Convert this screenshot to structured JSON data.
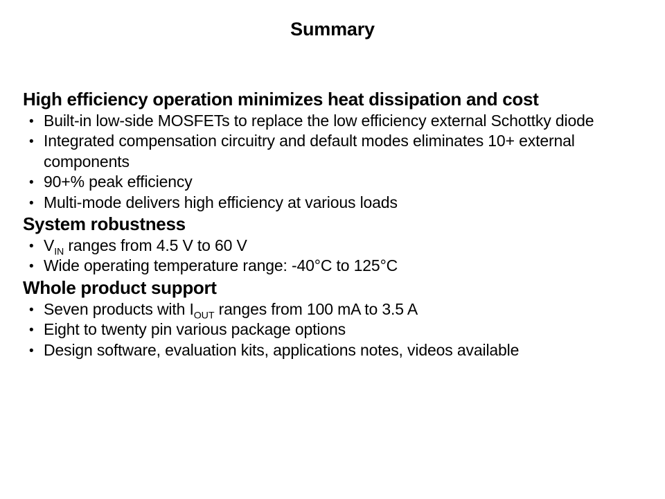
{
  "slide": {
    "title": "Summary",
    "bullet_glyph": "•",
    "colors": {
      "background": "#ffffff",
      "text": "#000000"
    },
    "sections": [
      {
        "heading": "High efficiency operation minimizes heat dissipation and cost",
        "bullets": [
          {
            "text": "Built-in low-side MOSFETs to replace the low efficiency external Schottky diode"
          },
          {
            "text": "Integrated compensation circuitry and default modes eliminates 10+ external components"
          },
          {
            "text": "90+% peak efficiency"
          },
          {
            "text": "Multi-mode delivers high efficiency at various loads"
          }
        ]
      },
      {
        "heading": "System robustness",
        "bullets": [
          {
            "pre": "V",
            "sub": "IN",
            "post": " ranges from 4.5 V to 60 V"
          },
          {
            "text": "Wide operating temperature range: -40°C to 125°C"
          }
        ]
      },
      {
        "heading": "Whole product support",
        "bullets": [
          {
            "pre": "Seven products with I",
            "sub": "OUT",
            "post": " ranges from 100 mA to 3.5 A"
          },
          {
            "text": "Eight to twenty pin various package options"
          },
          {
            "text": "Design software, evaluation kits, applications notes, videos available"
          }
        ]
      }
    ]
  }
}
